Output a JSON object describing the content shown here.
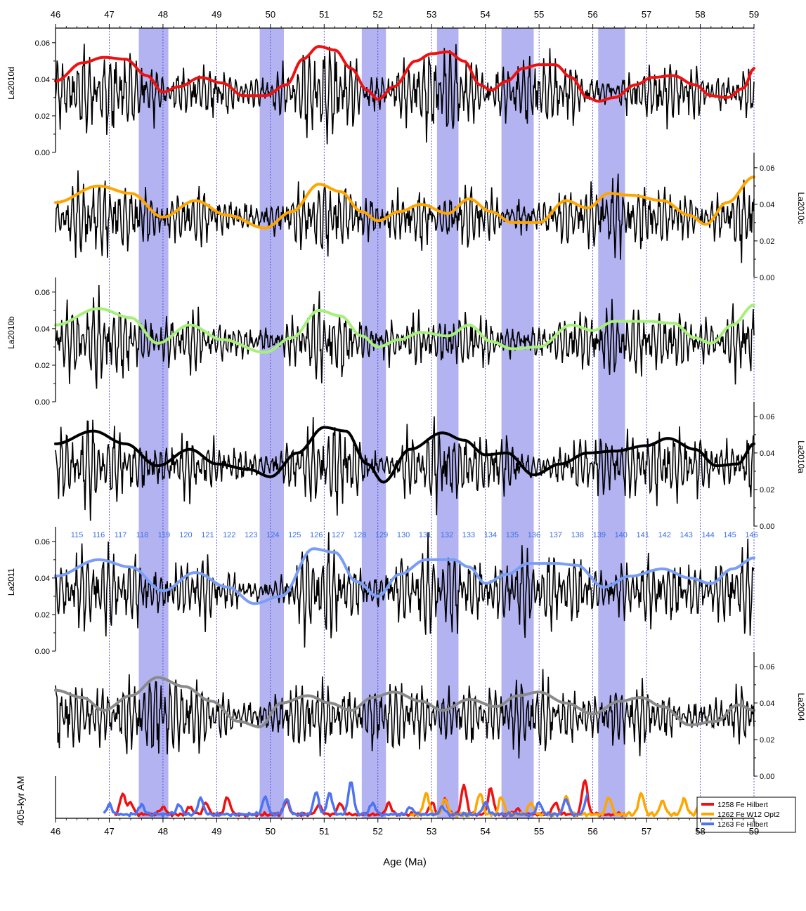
{
  "chart_data": {
    "type": "line",
    "title": "",
    "x_axis": {
      "label": "Age (Ma)",
      "range": [
        46,
        59
      ],
      "ticks": [
        "46",
        "47",
        "48",
        "49",
        "50",
        "51",
        "52",
        "53",
        "54",
        "55",
        "56",
        "57",
        "58",
        "59"
      ],
      "reversed": false
    },
    "highlight_bands": [
      {
        "from": 47.55,
        "to": 48.1
      },
      {
        "from": 49.8,
        "to": 50.25
      },
      {
        "from": 51.7,
        "to": 52.15
      },
      {
        "from": 53.1,
        "to": 53.5
      },
      {
        "from": 54.3,
        "to": 54.9
      },
      {
        "from": 56.1,
        "to": 56.6
      }
    ],
    "guide_lines_at": [
      47,
      48,
      49,
      50,
      51,
      52,
      53,
      54,
      55,
      56,
      57,
      58,
      59
    ],
    "cycle_numbers": {
      "start_age": 46.4,
      "step": 0.405,
      "labels": [
        "115",
        "116",
        "117",
        "118",
        "119",
        "120",
        "121",
        "122",
        "123",
        "124",
        "125",
        "126",
        "127",
        "128",
        "129",
        "130",
        "131",
        "132",
        "133",
        "134",
        "135",
        "136",
        "137",
        "138",
        "139",
        "140",
        "141",
        "142",
        "143",
        "144",
        "145",
        "146"
      ]
    },
    "panels": [
      {
        "name": "La2010d",
        "axis_side": "left",
        "ylim": [
          0,
          0.068
        ],
        "y_ticks": [
          "0.00",
          "0.02",
          "0.04",
          "0.06"
        ],
        "y_tick_values": [
          0,
          0.02,
          0.04,
          0.06
        ],
        "envelope_color": "#ee1111",
        "envelope": {
          "x": [
            46,
            46.5,
            46.9,
            47.3,
            47.7,
            48.0,
            48.3,
            48.7,
            49.1,
            49.5,
            49.9,
            50.3,
            50.6,
            50.9,
            51.2,
            51.5,
            51.8,
            52.0,
            52.3,
            52.7,
            53.0,
            53.3,
            53.6,
            53.9,
            54.1,
            54.4,
            54.7,
            55.0,
            55.3,
            55.6,
            55.9,
            56.1,
            56.4,
            56.8,
            57.1,
            57.5,
            57.9,
            58.2,
            58.5,
            58.8,
            59
          ],
          "y": [
            0.039,
            0.049,
            0.052,
            0.051,
            0.042,
            0.033,
            0.036,
            0.041,
            0.038,
            0.031,
            0.031,
            0.037,
            0.051,
            0.058,
            0.056,
            0.046,
            0.034,
            0.029,
            0.036,
            0.05,
            0.054,
            0.055,
            0.05,
            0.037,
            0.034,
            0.039,
            0.046,
            0.048,
            0.048,
            0.041,
            0.03,
            0.028,
            0.03,
            0.037,
            0.041,
            0.042,
            0.037,
            0.031,
            0.03,
            0.035,
            0.046
          ]
        },
        "signal": {
          "seed": 1,
          "amp": 0.024,
          "base": 0.033
        }
      },
      {
        "name": "La2010c",
        "axis_side": "right",
        "ylim": [
          0,
          0.068
        ],
        "y_ticks": [
          "0.00",
          "0.02",
          "0.04",
          "0.06"
        ],
        "y_tick_values": [
          0,
          0.02,
          0.04,
          0.06
        ],
        "envelope_color": "#ffa500",
        "envelope": {
          "x": [
            46,
            46.8,
            47.4,
            48.0,
            48.6,
            49.2,
            49.9,
            50.4,
            50.9,
            51.3,
            51.7,
            52.0,
            52.4,
            52.8,
            53.3,
            53.7,
            54.1,
            54.5,
            55.0,
            55.5,
            55.9,
            56.3,
            56.7,
            57.3,
            57.8,
            58.1,
            58.5,
            59
          ],
          "y": [
            0.041,
            0.05,
            0.046,
            0.033,
            0.042,
            0.034,
            0.027,
            0.036,
            0.051,
            0.047,
            0.036,
            0.031,
            0.036,
            0.04,
            0.035,
            0.043,
            0.036,
            0.03,
            0.03,
            0.042,
            0.038,
            0.046,
            0.045,
            0.042,
            0.034,
            0.029,
            0.041,
            0.055
          ]
        },
        "signal": {
          "seed": 2,
          "amp": 0.024,
          "base": 0.033
        }
      },
      {
        "name": "La2010b",
        "axis_side": "left",
        "ylim": [
          0,
          0.068
        ],
        "y_ticks": [
          "0.00",
          "0.02",
          "0.04",
          "0.06"
        ],
        "y_tick_values": [
          0,
          0.02,
          0.04,
          0.06
        ],
        "envelope_color": "#a6f07a",
        "envelope": {
          "x": [
            46,
            46.8,
            47.4,
            47.9,
            48.5,
            49.1,
            49.9,
            50.4,
            50.9,
            51.3,
            51.7,
            52.0,
            52.4,
            52.8,
            53.3,
            53.7,
            54.1,
            54.5,
            55.0,
            55.6,
            56.0,
            56.4,
            57.0,
            57.5,
            57.9,
            58.2,
            58.6,
            59
          ],
          "y": [
            0.042,
            0.051,
            0.046,
            0.032,
            0.042,
            0.034,
            0.027,
            0.035,
            0.05,
            0.047,
            0.036,
            0.03,
            0.034,
            0.038,
            0.036,
            0.042,
            0.033,
            0.029,
            0.03,
            0.042,
            0.039,
            0.044,
            0.044,
            0.043,
            0.035,
            0.032,
            0.042,
            0.053
          ]
        },
        "signal": {
          "seed": 3,
          "amp": 0.024,
          "base": 0.033
        }
      },
      {
        "name": "La2010a",
        "axis_side": "right",
        "ylim": [
          0,
          0.068
        ],
        "y_ticks": [
          "0.00",
          "0.02",
          "0.04",
          "0.06"
        ],
        "y_tick_values": [
          0,
          0.02,
          0.04,
          0.06
        ],
        "envelope_color": "#000000",
        "envelope": {
          "x": [
            46,
            46.7,
            47.3,
            47.9,
            48.5,
            49.0,
            49.6,
            50.0,
            50.5,
            51.0,
            51.4,
            51.8,
            52.1,
            52.6,
            53.2,
            53.6,
            54.0,
            54.4,
            54.9,
            55.4,
            55.9,
            56.4,
            57.0,
            57.4,
            57.9,
            58.3,
            58.7,
            59
          ],
          "y": [
            0.045,
            0.052,
            0.045,
            0.033,
            0.042,
            0.034,
            0.031,
            0.027,
            0.04,
            0.054,
            0.052,
            0.034,
            0.024,
            0.042,
            0.051,
            0.047,
            0.039,
            0.04,
            0.028,
            0.034,
            0.04,
            0.041,
            0.044,
            0.048,
            0.042,
            0.033,
            0.034,
            0.045
          ]
        },
        "signal": {
          "seed": 4,
          "amp": 0.024,
          "base": 0.033
        }
      },
      {
        "name": "La2011",
        "axis_side": "left",
        "ylim": [
          0,
          0.068
        ],
        "y_ticks": [
          "0.00",
          "0.02",
          "0.04",
          "0.06"
        ],
        "y_tick_values": [
          0,
          0.02,
          0.04,
          0.06
        ],
        "envelope_color": "#7b9ef5",
        "envelope": {
          "x": [
            46,
            46.8,
            47.4,
            48.0,
            48.6,
            49.2,
            49.7,
            50.2,
            50.8,
            51.2,
            51.6,
            52.0,
            52.4,
            52.9,
            53.4,
            53.7,
            54.0,
            54.4,
            54.8,
            55.3,
            55.7,
            56.2,
            56.7,
            57.3,
            57.8,
            58.2,
            58.6,
            59
          ],
          "y": [
            0.041,
            0.05,
            0.046,
            0.033,
            0.043,
            0.035,
            0.026,
            0.03,
            0.056,
            0.054,
            0.038,
            0.03,
            0.042,
            0.05,
            0.05,
            0.046,
            0.037,
            0.042,
            0.048,
            0.048,
            0.047,
            0.035,
            0.041,
            0.045,
            0.04,
            0.037,
            0.045,
            0.051
          ]
        },
        "signal": {
          "seed": 5,
          "amp": 0.024,
          "base": 0.033
        }
      },
      {
        "name": "La2004",
        "axis_side": "right",
        "ylim": [
          0,
          0.068
        ],
        "y_ticks": [
          "0.00",
          "0.02",
          "0.04",
          "0.06"
        ],
        "y_tick_values": [
          0,
          0.02,
          0.04,
          0.06
        ],
        "envelope_color": "#8a8a8a",
        "envelope": {
          "x": [
            46,
            46.5,
            46.9,
            47.4,
            47.9,
            48.4,
            48.9,
            49.4,
            49.8,
            50.2,
            50.7,
            51.1,
            51.5,
            51.9,
            52.3,
            52.8,
            53.2,
            53.7,
            54.2,
            54.6,
            55.0,
            55.5,
            56.0,
            56.5,
            56.9,
            57.3,
            57.8,
            58.3,
            58.7,
            59
          ],
          "y": [
            0.047,
            0.043,
            0.036,
            0.044,
            0.054,
            0.049,
            0.041,
            0.03,
            0.027,
            0.04,
            0.044,
            0.04,
            0.036,
            0.043,
            0.046,
            0.041,
            0.036,
            0.042,
            0.038,
            0.044,
            0.046,
            0.04,
            0.034,
            0.041,
            0.043,
            0.038,
            0.028,
            0.03,
            0.039,
            0.036
          ]
        },
        "signal": {
          "seed": 6,
          "amp": 0.024,
          "base": 0.033
        }
      }
    ],
    "am_panel": {
      "ylabel": "405-kyr AM",
      "ylim": [
        0,
        1
      ],
      "legend_position": "top-right",
      "series": [
        {
          "name": "1258 Fe Hilbert",
          "color": "#ee1111",
          "x_range": [
            47.1,
            56.6
          ],
          "seed": 11,
          "peaks": [
            [
              47.25,
              0.55
            ],
            [
              47.4,
              0.3
            ],
            [
              48.0,
              0.2
            ],
            [
              48.5,
              0.2
            ],
            [
              48.8,
              0.3
            ],
            [
              49.2,
              0.45
            ],
            [
              50.3,
              0.35
            ],
            [
              50.9,
              0.25
            ],
            [
              51.3,
              0.3
            ],
            [
              52.2,
              0.3
            ],
            [
              53.0,
              0.3
            ],
            [
              53.25,
              0.4
            ],
            [
              53.6,
              0.75
            ],
            [
              54.1,
              0.68
            ],
            [
              54.6,
              0.15
            ],
            [
              55.3,
              0.3
            ],
            [
              55.85,
              0.92
            ]
          ]
        },
        {
          "name": "1262 Fe W12 Opt2",
          "color": "#ffa500",
          "x_range": [
            52.6,
            58.1
          ],
          "seed": 12,
          "peaks": [
            [
              52.9,
              0.55
            ],
            [
              53.25,
              0.4
            ],
            [
              53.9,
              0.55
            ],
            [
              54.3,
              0.45
            ],
            [
              54.85,
              0.3
            ],
            [
              55.5,
              0.45
            ],
            [
              56.3,
              0.45
            ],
            [
              56.9,
              0.55
            ],
            [
              57.3,
              0.35
            ],
            [
              57.7,
              0.4
            ],
            [
              58.0,
              0.3
            ]
          ]
        },
        {
          "name": "1263 Fe Hilbert",
          "color": "#4d73f0",
          "x_range": [
            46.9,
            55.9
          ],
          "seed": 13,
          "peaks": [
            [
              47.0,
              0.25
            ],
            [
              47.6,
              0.25
            ],
            [
              48.3,
              0.25
            ],
            [
              48.7,
              0.4
            ],
            [
              49.9,
              0.45
            ],
            [
              50.3,
              0.4
            ],
            [
              50.85,
              0.6
            ],
            [
              51.1,
              0.55
            ],
            [
              51.5,
              0.85
            ],
            [
              51.9,
              0.3
            ],
            [
              52.6,
              0.2
            ],
            [
              53.2,
              0.2
            ],
            [
              54.0,
              0.3
            ],
            [
              55.0,
              0.3
            ],
            [
              55.5,
              0.4
            ],
            [
              55.9,
              0.5
            ]
          ]
        }
      ]
    }
  }
}
